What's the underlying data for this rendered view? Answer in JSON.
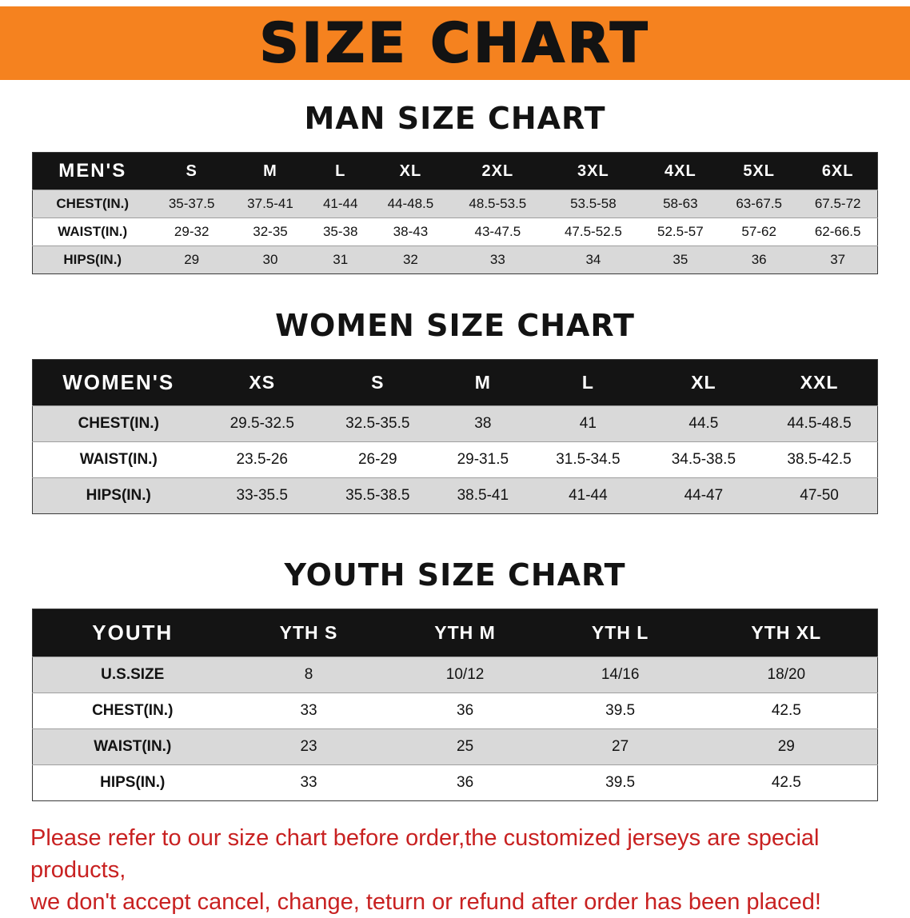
{
  "banner": {
    "title": "SIZE CHART"
  },
  "colors": {
    "banner_bg": "#f5821f",
    "table_header_bg": "#141414",
    "row_shade": "#d9d9d9",
    "disclaimer_red": "#c82121"
  },
  "sections": [
    {
      "heading": "MAN SIZE CHART",
      "table": {
        "label_header": "MEN'S",
        "columns": [
          "S",
          "M",
          "L",
          "XL",
          "2XL",
          "3XL",
          "4XL",
          "5XL",
          "6XL"
        ],
        "rows": [
          {
            "label": "CHEST(IN.)",
            "values": [
              "35-37.5",
              "37.5-41",
              "41-44",
              "44-48.5",
              "48.5-53.5",
              "53.5-58",
              "58-63",
              "63-67.5",
              "67.5-72"
            ]
          },
          {
            "label": "WAIST(IN.)",
            "values": [
              "29-32",
              "32-35",
              "35-38",
              "38-43",
              "43-47.5",
              "47.5-52.5",
              "52.5-57",
              "57-62",
              "62-66.5"
            ]
          },
          {
            "label": "HIPS(IN.)",
            "values": [
              "29",
              "30",
              "31",
              "32",
              "33",
              "34",
              "35",
              "36",
              "37"
            ]
          }
        ]
      }
    },
    {
      "heading": "WOMEN SIZE CHART",
      "table": {
        "label_header": "WOMEN'S",
        "columns": [
          "XS",
          "S",
          "M",
          "L",
          "XL",
          "XXL"
        ],
        "rows": [
          {
            "label": "CHEST(IN.)",
            "values": [
              "29.5-32.5",
              "32.5-35.5",
              "38",
              "41",
              "44.5",
              "44.5-48.5"
            ]
          },
          {
            "label": "WAIST(IN.)",
            "values": [
              "23.5-26",
              "26-29",
              "29-31.5",
              "31.5-34.5",
              "34.5-38.5",
              "38.5-42.5"
            ]
          },
          {
            "label": "HIPS(IN.)",
            "values": [
              "33-35.5",
              "35.5-38.5",
              "38.5-41",
              "41-44",
              "44-47",
              "47-50"
            ]
          }
        ]
      }
    },
    {
      "heading": "YOUTH SIZE CHART",
      "table": {
        "label_header": "YOUTH",
        "columns": [
          "YTH S",
          "YTH M",
          "YTH L",
          "YTH XL"
        ],
        "rows": [
          {
            "label": "U.S.SIZE",
            "values": [
              "8",
              "10/12",
              "14/16",
              "18/20"
            ]
          },
          {
            "label": "CHEST(IN.)",
            "values": [
              "33",
              "36",
              "39.5",
              "42.5"
            ]
          },
          {
            "label": "WAIST(IN.)",
            "values": [
              "23",
              "25",
              "27",
              "29"
            ]
          },
          {
            "label": "HIPS(IN.)",
            "values": [
              "33",
              "36",
              "39.5",
              "42.5"
            ]
          }
        ]
      }
    }
  ],
  "footer": {
    "line1": "Please refer to our size chart before order,the customized jerseys are special products,",
    "line2": "we don't accept cancel, change, teturn or refund after order has been placed!"
  }
}
